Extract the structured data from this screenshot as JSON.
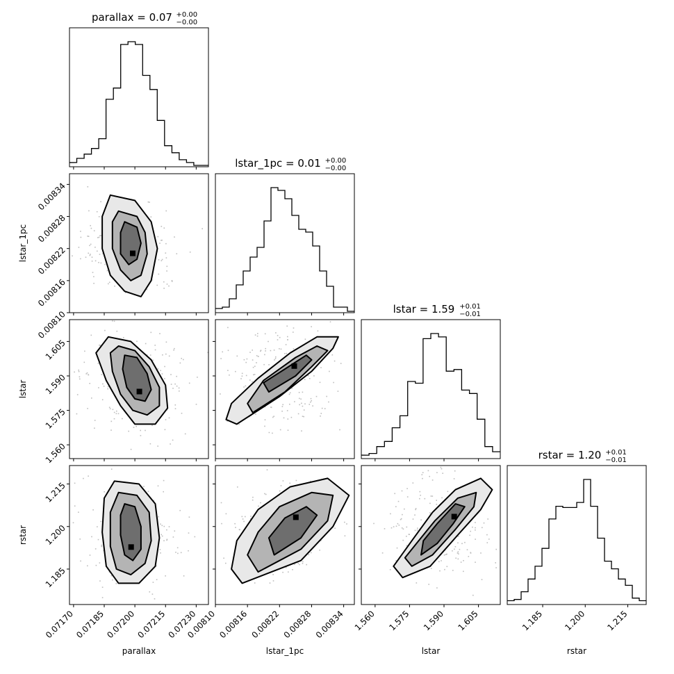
{
  "chart_data": {
    "type": "corner",
    "parameters": [
      {
        "name": "parallax",
        "title": "parallax = 0.07",
        "err_plus": "+0.00",
        "err_minus": "−0.00",
        "range": [
          0.07168,
          0.07236
        ],
        "ticks": [
          0.0717,
          0.07185,
          0.072,
          0.07215,
          0.0723
        ],
        "tick_labels": [
          "0.07170",
          "0.07185",
          "0.07200",
          "0.07215",
          "0.07230"
        ],
        "hist": [
          3,
          6,
          9,
          13,
          20,
          48,
          56,
          87,
          89,
          87,
          65,
          55,
          33,
          15,
          10,
          5,
          3,
          1,
          1
        ]
      },
      {
        "name": "lstar_1pc",
        "title": "lstar_1pc = 0.01",
        "err_plus": "+0.00",
        "err_minus": "−0.00",
        "range": [
          0.0081,
          0.00836
        ],
        "ticks": [
          0.0081,
          0.00816,
          0.00822,
          0.00828,
          0.00834
        ],
        "tick_labels": [
          "0.00810",
          "0.00816",
          "0.00822",
          "0.00828",
          "0.00834"
        ],
        "hist": [
          3,
          4,
          10,
          20,
          30,
          40,
          47,
          66,
          90,
          88,
          82,
          70,
          60,
          58,
          48,
          30,
          19,
          4,
          4,
          1
        ]
      },
      {
        "name": "lstar",
        "title": "lstar = 1.59",
        "err_plus": "+0.01",
        "err_minus": "−0.01",
        "range": [
          1.554,
          1.6145
        ],
        "ticks": [
          1.56,
          1.575,
          1.59,
          1.605
        ],
        "tick_labels": [
          "1.560",
          "1.575",
          "1.590",
          "1.605"
        ],
        "hist": [
          2,
          3,
          7,
          10,
          18,
          25,
          45,
          44,
          70,
          73,
          71,
          51,
          52,
          40,
          38,
          23,
          7,
          4
        ]
      },
      {
        "name": "rstar",
        "title": "rstar = 1.20",
        "err_plus": "+0.01",
        "err_minus": "−0.01",
        "range": [
          1.1725,
          1.2215
        ],
        "ticks": [
          1.185,
          1.2,
          1.215
        ],
        "tick_labels": [
          "1.185",
          "1.200",
          "1.215"
        ],
        "hist": [
          3,
          4,
          10,
          20,
          30,
          44,
          67,
          77,
          76,
          76,
          80,
          98,
          77,
          52,
          34,
          28,
          20,
          15,
          5,
          3
        ]
      }
    ],
    "contours": {
      "1_0": {
        "outer": [
          [
            0.07188,
            0.00832
          ],
          [
            0.072,
            0.00831
          ],
          [
            0.07208,
            0.00827
          ],
          [
            0.07211,
            0.00822
          ],
          [
            0.07208,
            0.00816
          ],
          [
            0.07203,
            0.00813
          ],
          [
            0.07195,
            0.00814
          ],
          [
            0.07188,
            0.00817
          ],
          [
            0.07184,
            0.00822
          ],
          [
            0.07184,
            0.00828
          ]
        ],
        "mid": [
          [
            0.07192,
            0.00829
          ],
          [
            0.07201,
            0.00828
          ],
          [
            0.07205,
            0.00825
          ],
          [
            0.07206,
            0.00821
          ],
          [
            0.07203,
            0.00817
          ],
          [
            0.07198,
            0.00816
          ],
          [
            0.07193,
            0.00818
          ],
          [
            0.07189,
            0.00822
          ],
          [
            0.07189,
            0.00827
          ]
        ],
        "inner": [
          [
            0.07195,
            0.00827
          ],
          [
            0.07201,
            0.00826
          ],
          [
            0.07203,
            0.00823
          ],
          [
            0.07201,
            0.0082
          ],
          [
            0.07197,
            0.00819
          ],
          [
            0.07193,
            0.00821
          ],
          [
            0.07193,
            0.00825
          ]
        ]
      },
      "2_0": {
        "outer": [
          [
            0.07187,
            1.607
          ],
          [
            0.07198,
            1.605
          ],
          [
            0.07208,
            1.597
          ],
          [
            0.07215,
            1.586
          ],
          [
            0.07216,
            1.576
          ],
          [
            0.0721,
            1.569
          ],
          [
            0.072,
            1.569
          ],
          [
            0.07193,
            1.577
          ],
          [
            0.07186,
            1.588
          ],
          [
            0.07181,
            1.6
          ]
        ],
        "mid": [
          [
            0.07192,
            1.603
          ],
          [
            0.072,
            1.601
          ],
          [
            0.07207,
            1.594
          ],
          [
            0.07212,
            1.585
          ],
          [
            0.07212,
            1.577
          ],
          [
            0.07206,
            1.573
          ],
          [
            0.07199,
            1.575
          ],
          [
            0.07193,
            1.582
          ],
          [
            0.07189,
            1.592
          ],
          [
            0.07188,
            1.6
          ]
        ],
        "inner": [
          [
            0.07195,
            1.599
          ],
          [
            0.07201,
            1.598
          ],
          [
            0.07206,
            1.591
          ],
          [
            0.07208,
            1.584
          ],
          [
            0.07205,
            1.579
          ],
          [
            0.072,
            1.58
          ],
          [
            0.07196,
            1.585
          ],
          [
            0.07194,
            1.593
          ]
        ]
      },
      "3_0": {
        "outer": [
          [
            0.0719,
            1.216
          ],
          [
            0.07202,
            1.215
          ],
          [
            0.0721,
            1.208
          ],
          [
            0.07212,
            1.196
          ],
          [
            0.0721,
            1.186
          ],
          [
            0.07202,
            1.18
          ],
          [
            0.07192,
            1.18
          ],
          [
            0.07186,
            1.186
          ],
          [
            0.07184,
            1.198
          ],
          [
            0.07185,
            1.21
          ]
        ],
        "mid": [
          [
            0.07192,
            1.212
          ],
          [
            0.07201,
            1.211
          ],
          [
            0.07207,
            1.205
          ],
          [
            0.07208,
            1.195
          ],
          [
            0.07205,
            1.187
          ],
          [
            0.07198,
            1.183
          ],
          [
            0.07191,
            1.185
          ],
          [
            0.07188,
            1.193
          ],
          [
            0.07188,
            1.205
          ]
        ],
        "inner": [
          [
            0.07195,
            1.208
          ],
          [
            0.072,
            1.207
          ],
          [
            0.07203,
            1.2
          ],
          [
            0.07203,
            1.192
          ],
          [
            0.07199,
            1.188
          ],
          [
            0.07195,
            1.19
          ],
          [
            0.07193,
            1.197
          ],
          [
            0.07193,
            1.204
          ]
        ]
      },
      "2_1": {
        "outer": [
          [
            0.00814,
            1.569
          ],
          [
            0.00822,
            1.581
          ],
          [
            0.00828,
            1.592
          ],
          [
            0.00832,
            1.602
          ],
          [
            0.00833,
            1.607
          ],
          [
            0.00829,
            1.607
          ],
          [
            0.00824,
            1.6
          ],
          [
            0.00818,
            1.589
          ],
          [
            0.00813,
            1.578
          ],
          [
            0.00812,
            1.571
          ]
        ],
        "mid": [
          [
            0.00817,
            1.574
          ],
          [
            0.00823,
            1.583
          ],
          [
            0.00828,
            1.594
          ],
          [
            0.00831,
            1.601
          ],
          [
            0.00829,
            1.603
          ],
          [
            0.00825,
            1.598
          ],
          [
            0.00819,
            1.588
          ],
          [
            0.00816,
            1.578
          ]
        ],
        "inner": [
          [
            0.0082,
            1.583
          ],
          [
            0.00825,
            1.59
          ],
          [
            0.00828,
            1.597
          ],
          [
            0.00827,
            1.599
          ],
          [
            0.00823,
            1.593
          ],
          [
            0.00819,
            1.587
          ]
        ]
      },
      "3_1": {
        "outer": [
          [
            0.00815,
            1.18
          ],
          [
            0.00826,
            1.188
          ],
          [
            0.00832,
            1.2
          ],
          [
            0.00835,
            1.211
          ],
          [
            0.00831,
            1.217
          ],
          [
            0.00824,
            1.214
          ],
          [
            0.00818,
            1.206
          ],
          [
            0.00814,
            1.195
          ],
          [
            0.00813,
            1.185
          ]
        ],
        "mid": [
          [
            0.00818,
            1.184
          ],
          [
            0.00826,
            1.192
          ],
          [
            0.00831,
            1.202
          ],
          [
            0.00832,
            1.211
          ],
          [
            0.00828,
            1.212
          ],
          [
            0.00822,
            1.207
          ],
          [
            0.00818,
            1.198
          ],
          [
            0.00816,
            1.19
          ]
        ],
        "inner": [
          [
            0.00821,
            1.19
          ],
          [
            0.00826,
            1.196
          ],
          [
            0.00829,
            1.204
          ],
          [
            0.00827,
            1.207
          ],
          [
            0.00823,
            1.203
          ],
          [
            0.0082,
            1.196
          ]
        ]
      },
      "3_2": {
        "outer": [
          [
            1.572,
            1.182
          ],
          [
            1.584,
            1.186
          ],
          [
            1.596,
            1.197
          ],
          [
            1.606,
            1.206
          ],
          [
            1.611,
            1.213
          ],
          [
            1.606,
            1.217
          ],
          [
            1.595,
            1.213
          ],
          [
            1.585,
            1.205
          ],
          [
            1.576,
            1.195
          ],
          [
            1.568,
            1.186
          ]
        ],
        "mid": [
          [
            1.576,
            1.186
          ],
          [
            1.585,
            1.19
          ],
          [
            1.595,
            1.199
          ],
          [
            1.603,
            1.207
          ],
          [
            1.604,
            1.212
          ],
          [
            1.596,
            1.21
          ],
          [
            1.586,
            1.202
          ],
          [
            1.578,
            1.194
          ],
          [
            1.573,
            1.189
          ]
        ],
        "inner": [
          [
            1.58,
            1.19
          ],
          [
            1.587,
            1.194
          ],
          [
            1.594,
            1.201
          ],
          [
            1.599,
            1.207
          ],
          [
            1.595,
            1.208
          ],
          [
            1.587,
            1.201
          ],
          [
            1.581,
            1.195
          ]
        ]
      }
    }
  }
}
